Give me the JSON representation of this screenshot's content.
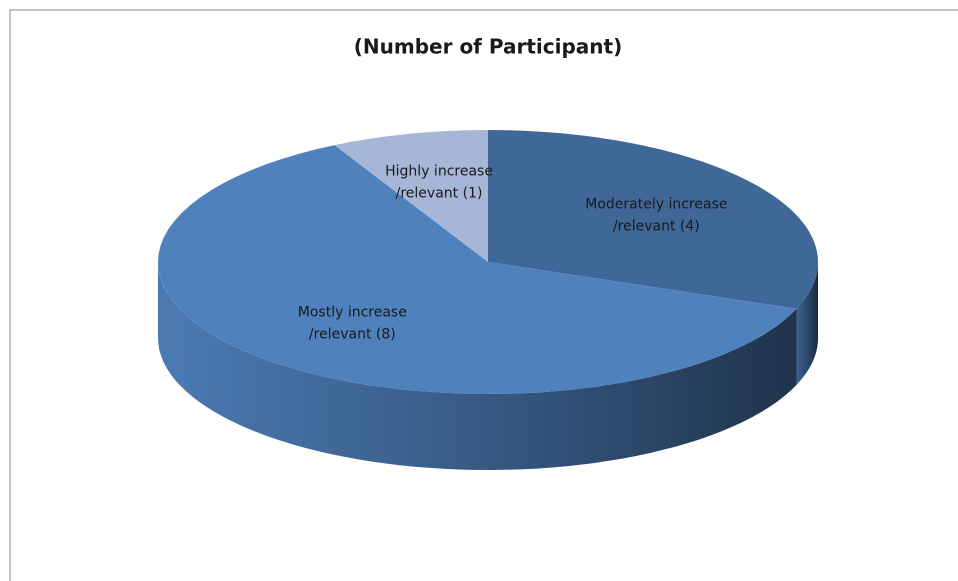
{
  "chart_data": {
    "type": "pie3d",
    "title": "(Number of Participant)",
    "values": [
      4,
      8,
      1
    ],
    "value_labels": [
      [
        "Moderately increase",
        "/relevant (4)"
      ],
      [
        "Mostly increase",
        "/relevant (8)"
      ],
      [
        "Highly increase",
        "/relevant (1)"
      ]
    ],
    "colors": [
      "#3f6797",
      "#4f81bd",
      "#a5b6d6"
    ]
  }
}
